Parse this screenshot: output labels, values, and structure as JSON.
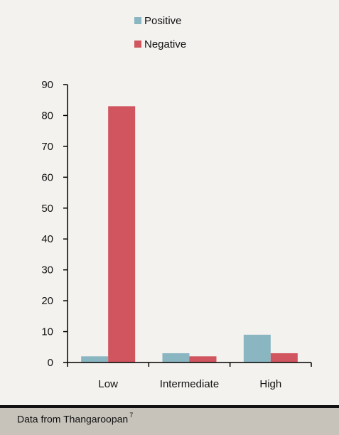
{
  "chart_data": {
    "type": "bar",
    "categories": [
      "Low",
      "Intermediate",
      "High"
    ],
    "series": [
      {
        "name": "Positive",
        "values": [
          2,
          3,
          9
        ],
        "color": "#8ab6c2"
      },
      {
        "name": "Negative",
        "values": [
          83,
          2,
          3
        ],
        "color": "#d0555e"
      }
    ],
    "ylim": [
      0,
      90
    ],
    "yticks": [
      0,
      10,
      20,
      30,
      40,
      50,
      60,
      70,
      80,
      90
    ],
    "title": "",
    "xlabel": "",
    "ylabel": "",
    "legend_position": "top",
    "grid": false
  },
  "footer": {
    "text": "Data from Thangaroopan",
    "superscript": "7"
  }
}
